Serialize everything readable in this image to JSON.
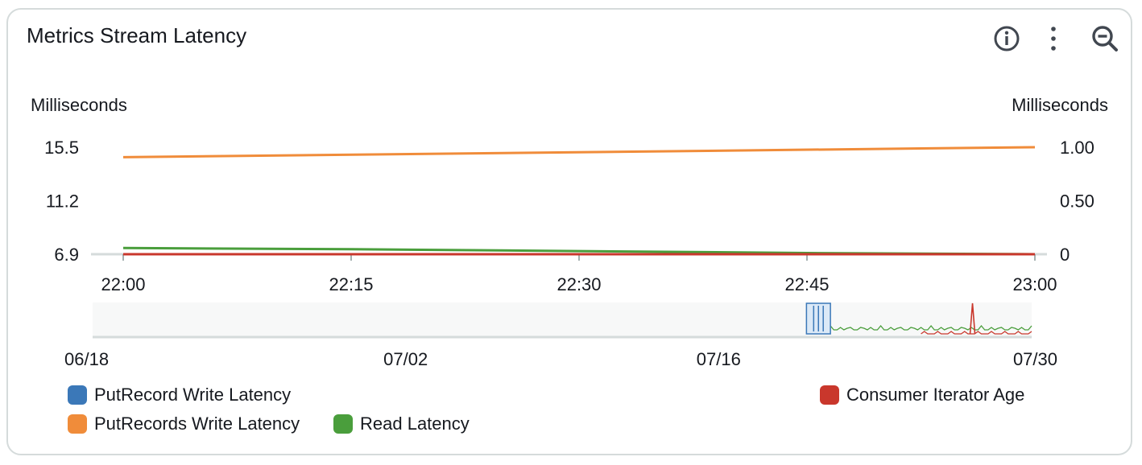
{
  "widget": {
    "title": "Metrics Stream Latency",
    "icons": [
      "info-icon",
      "more-vertical-icon",
      "zoom-out-icon"
    ]
  },
  "chart_data": {
    "type": "line",
    "y_left": {
      "label": "Milliseconds",
      "ticks": [
        "15.5",
        "11.2",
        "6.9"
      ],
      "range": [
        6.9,
        15.5
      ]
    },
    "y_right": {
      "label": "Milliseconds",
      "ticks": [
        "1.00",
        "0.50",
        "0"
      ],
      "range": [
        0,
        1
      ]
    },
    "x": {
      "ticks": [
        "22:00",
        "22:15",
        "22:30",
        "22:45",
        "23:00"
      ],
      "range": [
        "22:00",
        "23:00"
      ]
    },
    "series": [
      {
        "name": "PutRecords Write Latency",
        "color": "#f08c3a",
        "axis": "left",
        "x": [
          "22:00",
          "23:00"
        ],
        "values": [
          14.7,
          15.5
        ]
      },
      {
        "name": "Read Latency",
        "color": "#4a9e3c",
        "axis": "left",
        "x": [
          "22:00",
          "22:15",
          "22:30",
          "22:45",
          "23:00"
        ],
        "values": [
          7.4,
          7.3,
          7.15,
          7.0,
          6.9
        ]
      },
      {
        "name": "Consumer Iterator Age",
        "color": "#c9372c",
        "axis": "right",
        "x": [
          "22:00",
          "23:00"
        ],
        "values": [
          0,
          0
        ]
      }
    ],
    "overview": {
      "ticks": [
        "06/18",
        "07/02",
        "07/16",
        "07/30"
      ],
      "range": [
        "06/18",
        "07/30"
      ],
      "selection": [
        "07/20",
        "07/21"
      ]
    },
    "grid": false,
    "legend_position": "bottom"
  },
  "legend": [
    {
      "label": "PutRecord Write Latency",
      "color": "#3b78b8"
    },
    {
      "label": "PutRecords Write Latency",
      "color": "#f08c3a"
    },
    {
      "label": "Read Latency",
      "color": "#4a9e3c"
    },
    {
      "label": "Consumer Iterator Age",
      "color": "#c9372c"
    }
  ]
}
